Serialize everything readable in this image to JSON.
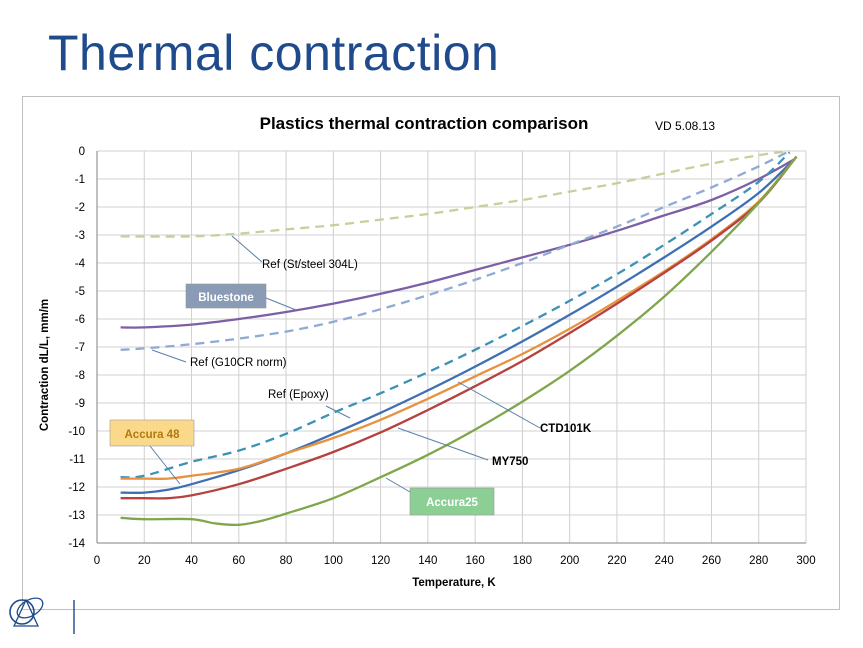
{
  "slide": {
    "title": "Thermal contraction"
  },
  "chart_data": {
    "type": "line",
    "title": "Plastics thermal contraction comparison",
    "subtitle": "VD 5.08.13",
    "xlabel": "Temperature, K",
    "ylabel": "Contraction dL/L, mm/m",
    "xlim": [
      0,
      300
    ],
    "ylim": [
      -14,
      0
    ],
    "xticks": [
      0,
      20,
      40,
      60,
      80,
      100,
      120,
      140,
      160,
      180,
      200,
      220,
      240,
      260,
      280,
      300
    ],
    "yticks": [
      0,
      -1,
      -2,
      -3,
      -4,
      -5,
      -6,
      -7,
      -8,
      -9,
      -10,
      -11,
      -12,
      -13,
      -14
    ],
    "grid": true,
    "series": [
      {
        "name": "Ref (St/steel 304L)",
        "color": "#c4d29a",
        "dash": true,
        "x": [
          10,
          40,
          60,
          80,
          100,
          120,
          140,
          160,
          180,
          200,
          220,
          240,
          260,
          280,
          293
        ],
        "y": [
          -3.05,
          -3.05,
          -2.95,
          -2.8,
          -2.65,
          -2.45,
          -2.25,
          -2.0,
          -1.75,
          -1.45,
          -1.15,
          -0.8,
          -0.45,
          -0.15,
          0
        ]
      },
      {
        "name": "Bluestone",
        "color": "#7c5fa5",
        "dash": false,
        "x": [
          10,
          20,
          40,
          60,
          80,
          100,
          120,
          140,
          160,
          180,
          200,
          220,
          240,
          260,
          280,
          295
        ],
        "y": [
          -6.3,
          -6.3,
          -6.2,
          -6.0,
          -5.75,
          -5.45,
          -5.1,
          -4.7,
          -4.25,
          -3.8,
          -3.35,
          -2.85,
          -2.3,
          -1.75,
          -1.0,
          -0.3
        ]
      },
      {
        "name": "Ref (G10CR norm)",
        "color": "#8faad4",
        "dash": true,
        "x": [
          10,
          20,
          40,
          60,
          80,
          100,
          120,
          140,
          160,
          180,
          200,
          220,
          240,
          260,
          280,
          293
        ],
        "y": [
          -7.1,
          -7.05,
          -6.9,
          -6.7,
          -6.45,
          -6.1,
          -5.65,
          -5.15,
          -4.6,
          -4.0,
          -3.35,
          -2.7,
          -2.0,
          -1.3,
          -0.55,
          0
        ]
      },
      {
        "name": "Ref (Epoxy)",
        "color": "#3b92b5",
        "dash": true,
        "x": [
          10,
          20,
          40,
          60,
          80,
          100,
          120,
          140,
          160,
          180,
          200,
          220,
          240,
          260,
          280,
          293
        ],
        "y": [
          -11.65,
          -11.6,
          -11.1,
          -10.7,
          -10.1,
          -9.35,
          -8.65,
          -7.9,
          -7.1,
          -6.25,
          -5.35,
          -4.4,
          -3.35,
          -2.25,
          -1.1,
          -0.05
        ]
      },
      {
        "name": "CTD101K",
        "color": "#3f6fb3",
        "dash": false,
        "x": [
          10,
          20,
          30,
          40,
          60,
          80,
          100,
          120,
          140,
          160,
          180,
          200,
          220,
          240,
          260,
          280,
          295
        ],
        "y": [
          -12.2,
          -12.2,
          -12.1,
          -11.9,
          -11.4,
          -10.8,
          -10.1,
          -9.35,
          -8.55,
          -7.7,
          -6.8,
          -5.85,
          -4.85,
          -3.8,
          -2.7,
          -1.5,
          -0.3
        ]
      },
      {
        "name": "Accura 48",
        "color": "#e8923f",
        "dash": false,
        "x": [
          10,
          20,
          30,
          40,
          60,
          80,
          100,
          120,
          140,
          160,
          180,
          200,
          220,
          240,
          260,
          280,
          296
        ],
        "y": [
          -11.7,
          -11.7,
          -11.7,
          -11.6,
          -11.35,
          -10.8,
          -10.25,
          -9.6,
          -8.85,
          -8.05,
          -7.25,
          -6.35,
          -5.35,
          -4.3,
          -3.15,
          -1.8,
          -0.2
        ]
      },
      {
        "name": "MY750",
        "color": "#b5423f",
        "dash": false,
        "x": [
          10,
          20,
          30,
          40,
          60,
          80,
          100,
          120,
          140,
          160,
          180,
          200,
          220,
          240,
          260,
          280,
          296
        ],
        "y": [
          -12.4,
          -12.4,
          -12.4,
          -12.3,
          -11.9,
          -11.35,
          -10.75,
          -10.05,
          -9.25,
          -8.4,
          -7.5,
          -6.5,
          -5.45,
          -4.35,
          -3.2,
          -1.85,
          -0.2
        ]
      },
      {
        "name": "Accura25",
        "color": "#7fa64a",
        "dash": false,
        "x": [
          10,
          20,
          40,
          50,
          60,
          70,
          80,
          100,
          120,
          140,
          160,
          180,
          200,
          220,
          240,
          260,
          280,
          296
        ],
        "y": [
          -13.1,
          -13.15,
          -13.15,
          -13.3,
          -13.35,
          -13.2,
          -12.95,
          -12.4,
          -11.65,
          -10.85,
          -9.95,
          -8.95,
          -7.85,
          -6.6,
          -5.2,
          -3.6,
          -1.85,
          -0.2
        ]
      }
    ],
    "annotations": [
      {
        "text": "Ref (St/steel 304L)",
        "box": false
      },
      {
        "text": "Bluestone",
        "box": true,
        "fill": "#8a9bb5",
        "color": "#ffffff"
      },
      {
        "text": "Ref (G10CR norm)",
        "box": false
      },
      {
        "text": "Ref (Epoxy)",
        "box": false
      },
      {
        "text": "CTD101K",
        "box": false
      },
      {
        "text": "Accura 48",
        "box": true,
        "fill": "#fbd98a",
        "color": "#b07a10"
      },
      {
        "text": "MY750",
        "box": false
      },
      {
        "text": "Accura25",
        "box": true,
        "fill": "#8ccf94",
        "color": "#ffffff"
      }
    ]
  }
}
